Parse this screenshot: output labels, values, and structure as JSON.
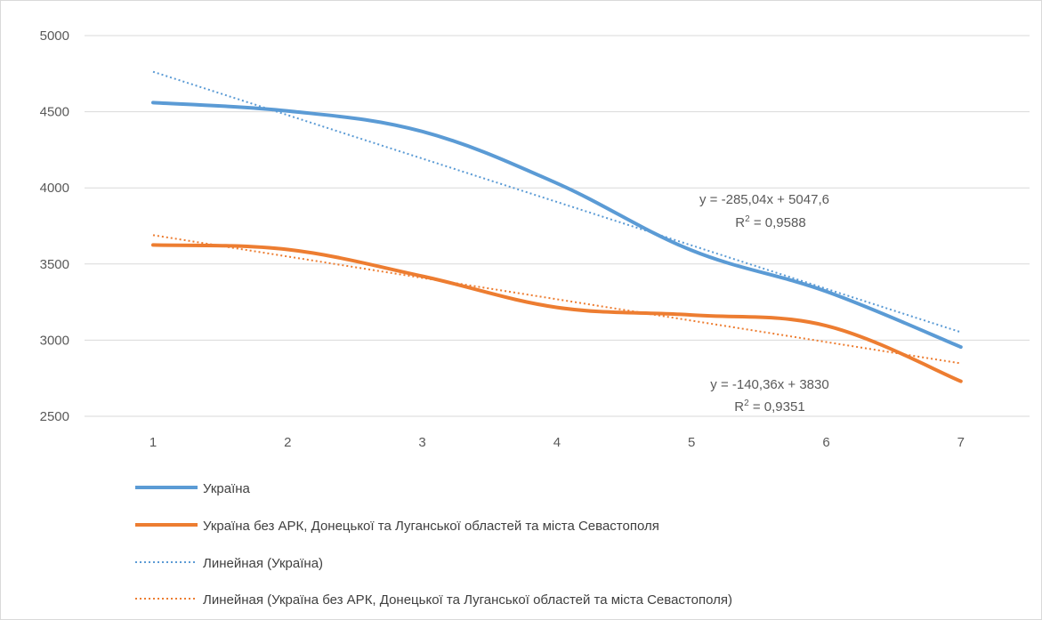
{
  "chart_data": {
    "type": "line",
    "title": "",
    "xlabel": "",
    "ylabel": "",
    "categories": [
      "1",
      "2",
      "3",
      "4",
      "5",
      "6",
      "7"
    ],
    "ylim": [
      2500,
      5000
    ],
    "yticks": [
      "5000",
      "4500",
      "4000",
      "3500",
      "3000",
      "2500"
    ],
    "ytick_values": [
      5000,
      4500,
      4000,
      3500,
      3000,
      2500
    ],
    "grid": "horizontal",
    "legend_position": "bottom",
    "series": [
      {
        "name": "Україна",
        "values": [
          4560,
          4505,
          4370,
          4030,
          3590,
          3320,
          2955
        ],
        "color": "#5b9bd5",
        "style": "solid"
      },
      {
        "name": "Україна без АРК, Донецької та Луганської областей та міста Севастополя",
        "values": [
          3625,
          3595,
          3420,
          3215,
          3165,
          3095,
          2730
        ],
        "color": "#ed7d31",
        "style": "solid"
      },
      {
        "name": "Линейная (Україна)",
        "values": [
          4762.56,
          4477.52,
          4192.48,
          3907.44,
          3622.4,
          3337.36,
          3052.32
        ],
        "color": "#5b9bd5",
        "style": "dotted"
      },
      {
        "name": "Линейная (Україна без АРК, Донецької та Луганської областей та міста Севастополя)",
        "values": [
          3689.64,
          3549.28,
          3408.92,
          3268.56,
          3128.2,
          2987.84,
          2847.48
        ],
        "color": "#ed7d31",
        "style": "dotted"
      }
    ],
    "annotations": [
      {
        "equation": "y = -285,04x + 5047,6",
        "r2_label": "R",
        "r2_exp": "2",
        "r2_value": " = 0,9588"
      },
      {
        "equation": "y = -140,36x + 3830",
        "r2_label": "R",
        "r2_exp": "2",
        "r2_value": " = 0,9351"
      }
    ]
  }
}
